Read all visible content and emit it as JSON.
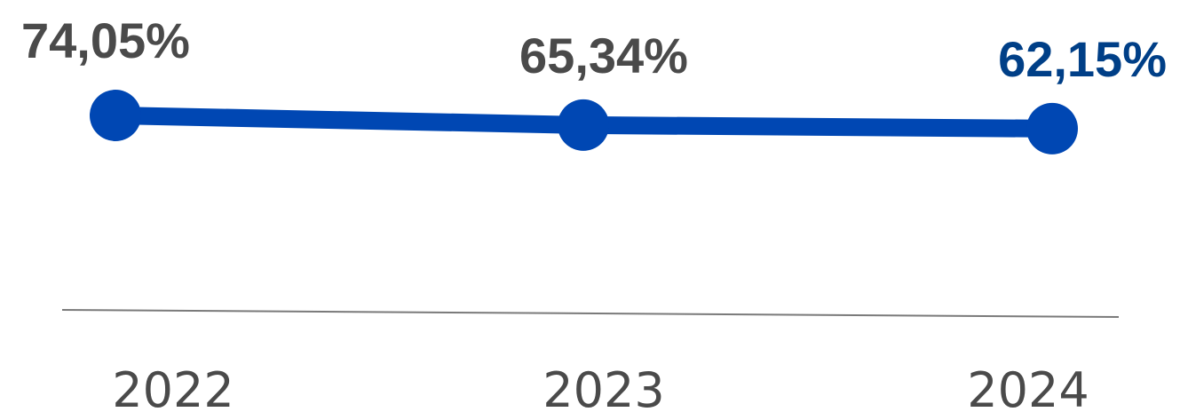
{
  "chart_data": {
    "type": "line",
    "categories": [
      "2022",
      "2023",
      "2024"
    ],
    "series": [
      {
        "values": [
          74.05,
          65.34,
          62.15
        ],
        "data_labels": [
          "74,05%",
          "65,34%",
          "62,15%"
        ]
      }
    ],
    "title": "",
    "xlabel": "",
    "ylabel": "",
    "grid": false,
    "legend": "none",
    "colors": {
      "line": "#0047b3",
      "marker": "#0047b3",
      "label_default": "#4a4a4a",
      "label_highlight": "#003f87",
      "baseline": "#7a7a7a"
    },
    "highlight_index": 2
  }
}
